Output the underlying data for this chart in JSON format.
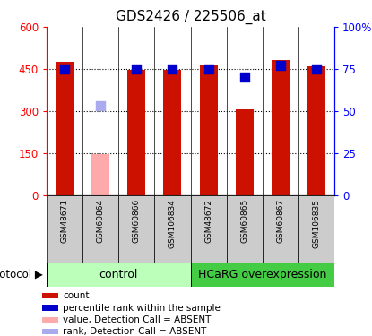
{
  "title": "GDS2426 / 225506_at",
  "samples": [
    "GSM48671",
    "GSM60864",
    "GSM60866",
    "GSM106834",
    "GSM48672",
    "GSM60865",
    "GSM60867",
    "GSM106835"
  ],
  "count_values": [
    475,
    148,
    448,
    447,
    465,
    305,
    483,
    458
  ],
  "count_absent": [
    false,
    true,
    false,
    false,
    false,
    false,
    false,
    false
  ],
  "rank_values": [
    75,
    53,
    75,
    75,
    75,
    70,
    77,
    75
  ],
  "rank_absent": [
    false,
    true,
    false,
    false,
    false,
    false,
    false,
    false
  ],
  "ylim_left": [
    0,
    600
  ],
  "ylim_right": [
    0,
    100
  ],
  "yticks_left": [
    0,
    150,
    300,
    450,
    600
  ],
  "ytick_labels_left": [
    "0",
    "150",
    "300",
    "450",
    "600"
  ],
  "yticks_right": [
    0,
    25,
    50,
    75,
    100
  ],
  "ytick_labels_right": [
    "0",
    "25",
    "50",
    "75",
    "100%"
  ],
  "bar_color_present": "#cc1100",
  "bar_color_absent": "#ffaaaa",
  "dot_color_present": "#0000cc",
  "dot_color_absent": "#aaaaee",
  "control_samples": 4,
  "hcarg_samples": 4,
  "control_label": "control",
  "hcarg_label": "HCaRG overexpression",
  "protocol_label": "protocol",
  "control_bg": "#bbffbb",
  "hcarg_bg": "#44cc44",
  "xticklabel_bg": "#cccccc",
  "bar_width": 0.5,
  "dot_size": 55,
  "legend_items": [
    {
      "color": "#cc1100",
      "label": "count"
    },
    {
      "color": "#0000cc",
      "label": "percentile rank within the sample"
    },
    {
      "color": "#ffaaaa",
      "label": "value, Detection Call = ABSENT"
    },
    {
      "color": "#aaaaee",
      "label": "rank, Detection Call = ABSENT"
    }
  ]
}
